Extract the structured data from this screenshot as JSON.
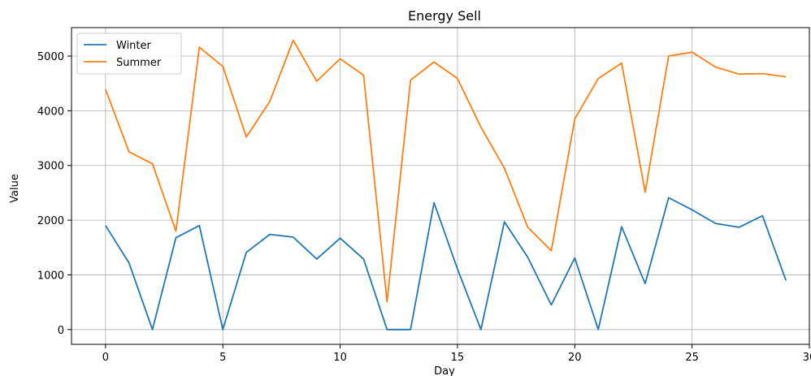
{
  "chart_data": {
    "type": "line",
    "title": "Energy Sell",
    "xlabel": "Day",
    "ylabel": "Value",
    "xlim": [
      -1.45,
      30.0
    ],
    "ylim": [
      -270,
      5520
    ],
    "xticks": [
      0,
      5,
      10,
      15,
      20,
      25,
      30
    ],
    "xtick_labels": [
      "0",
      "5",
      "10",
      "15",
      "20",
      "25",
      "30"
    ],
    "yticks": [
      0,
      1000,
      2000,
      3000,
      4000,
      5000
    ],
    "ytick_labels": [
      "0",
      "1000",
      "2000",
      "3000",
      "4000",
      "5000"
    ],
    "grid": true,
    "legend_position": "top-left",
    "x": [
      0,
      1,
      2,
      3,
      4,
      5,
      6,
      7,
      8,
      9,
      10,
      11,
      12,
      13,
      14,
      15,
      16,
      17,
      18,
      19,
      20,
      21,
      22,
      23,
      24,
      25,
      26,
      27,
      28,
      29
    ],
    "series": [
      {
        "name": "Winter",
        "color": "#1f77b4",
        "values": [
          1900,
          1220,
          0,
          1680,
          1900,
          0,
          1410,
          1740,
          1690,
          1290,
          1670,
          1290,
          0,
          0,
          2320,
          1110,
          0,
          1970,
          1320,
          450,
          1310,
          0,
          1880,
          840,
          2410,
          2190,
          1940,
          1870,
          2080,
          900
        ]
      },
      {
        "name": "Summer",
        "color": "#ff7f0e",
        "values": [
          4390,
          3250,
          3030,
          1800,
          5160,
          4810,
          3520,
          4170,
          5290,
          4540,
          4950,
          4650,
          510,
          4560,
          4890,
          4590,
          3700,
          2950,
          1870,
          1440,
          3850,
          4590,
          4870,
          2510,
          5000,
          5070,
          4800,
          4670,
          4680,
          4620
        ]
      }
    ]
  }
}
